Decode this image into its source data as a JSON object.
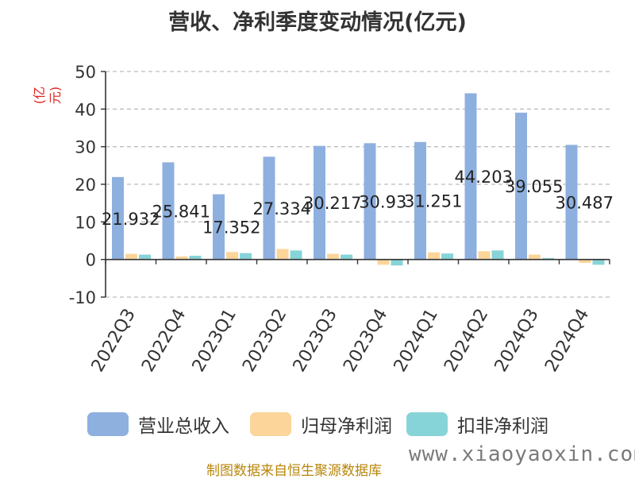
{
  "chart_data": {
    "type": "bar",
    "title": "营收、净利季度变动情况(亿元)",
    "ylabel": "(亿元)",
    "ylim": [
      -10,
      50
    ],
    "yticks": [
      50,
      40,
      30,
      20,
      10,
      0,
      -10
    ],
    "grid": true,
    "legend_position": "bottom",
    "categories": [
      "2022Q3",
      "2022Q4",
      "2023Q1",
      "2023Q2",
      "2023Q3",
      "2023Q4",
      "2024Q1",
      "2024Q2",
      "2024Q3",
      "2024Q4"
    ],
    "series": [
      {
        "name": "营业总收入",
        "color": "#8eb0df",
        "values": [
          21.932,
          25.841,
          17.352,
          27.334,
          30.217,
          30.93,
          31.251,
          44.203,
          39.055,
          30.487
        ],
        "data_labels": [
          "21.932",
          "25.841",
          "17.352",
          "27.334",
          "30.217",
          "30.93",
          "31.251",
          "44.203",
          "39.055",
          "30.487"
        ]
      },
      {
        "name": "归母净利润",
        "color": "#fcd59a",
        "values": [
          1.5,
          0.8,
          2.0,
          2.8,
          1.5,
          -1.4,
          1.9,
          2.2,
          1.3,
          -0.9
        ]
      },
      {
        "name": "扣非净利润",
        "color": "#87d4d8",
        "values": [
          1.3,
          1.0,
          1.7,
          2.4,
          1.3,
          -1.6,
          1.6,
          2.4,
          0.4,
          -1.4
        ]
      }
    ]
  },
  "source_note": "制图数据来自恒生聚源数据库",
  "watermark": "www.xiaoyaoxin.com"
}
